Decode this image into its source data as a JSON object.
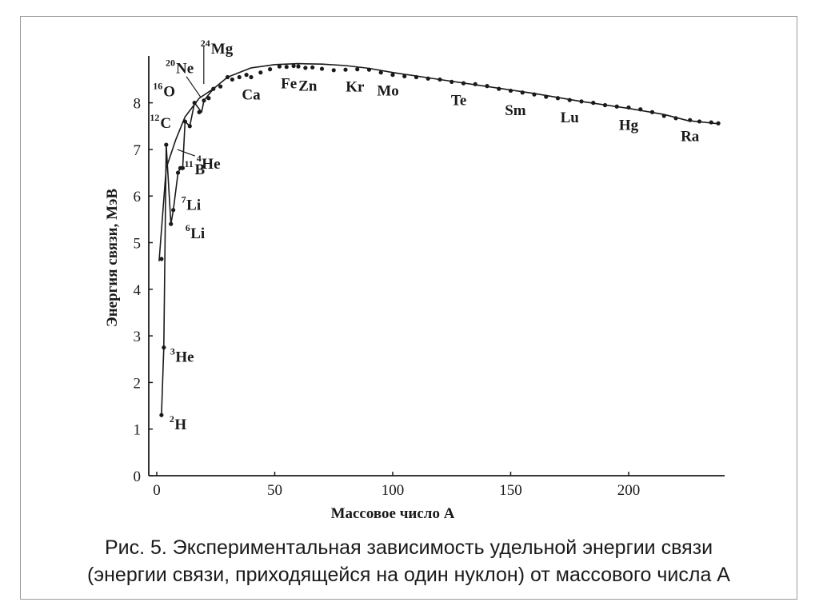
{
  "caption": {
    "line1": "Рис. 5. Экспериментальная зависимость удельной энергии связи",
    "line2": "(энергии связи, приходящейся на один нуклон) от массового числа А"
  },
  "chart_data": {
    "type": "line",
    "title": "",
    "xlabel": "Массовое число A",
    "ylabel": "Энергия связи, МэВ",
    "xlim": [
      -3,
      240
    ],
    "ylim": [
      0,
      9
    ],
    "x_ticks": [
      0,
      50,
      100,
      150,
      200
    ],
    "y_ticks": [
      0,
      1,
      2,
      3,
      4,
      5,
      6,
      7,
      8
    ],
    "grid": false,
    "legend": "none",
    "colors": {
      "line": "#1a1a1a",
      "axis": "#1a1a1a",
      "frame": "#9a9a9a"
    },
    "light_nuclei": [
      {
        "mass": "2",
        "symbol": "H",
        "A": 2,
        "E": 1.3
      },
      {
        "mass": "3",
        "symbol": "He",
        "A": 3,
        "E": 2.75
      },
      {
        "mass": "4",
        "symbol": "He",
        "A": 4,
        "E": 7.1
      },
      {
        "mass": "6",
        "symbol": "Li",
        "A": 6,
        "E": 5.4
      },
      {
        "mass": "7",
        "symbol": "Li",
        "A": 7,
        "E": 5.7
      },
      {
        "mass": "11",
        "symbol": "B",
        "A": 11,
        "E": 6.6
      },
      {
        "mass": "12",
        "symbol": "C",
        "A": 12,
        "E": 7.6
      },
      {
        "mass": "16",
        "symbol": "O",
        "A": 16,
        "E": 8.0
      },
      {
        "mass": "20",
        "symbol": "Ne",
        "A": 20,
        "E": 8.05
      },
      {
        "mass": "24",
        "symbol": "Mg",
        "A": 24,
        "E": 8.3
      }
    ],
    "element_labels": [
      {
        "text": "Ca",
        "A": 40,
        "E": 8.55
      },
      {
        "text": "Fe",
        "A": 56,
        "E": 8.79
      },
      {
        "text": "Zn",
        "A": 64,
        "E": 8.74
      },
      {
        "text": "Kr",
        "A": 84,
        "E": 8.72
      },
      {
        "text": "Mo",
        "A": 98,
        "E": 8.64
      },
      {
        "text": "Te",
        "A": 128,
        "E": 8.43
      },
      {
        "text": "Sm",
        "A": 152,
        "E": 8.22
      },
      {
        "text": "Lu",
        "A": 175,
        "E": 8.06
      },
      {
        "text": "Hg",
        "A": 200,
        "E": 7.9
      },
      {
        "text": "Ra",
        "A": 226,
        "E": 7.66
      }
    ],
    "light_path": [
      {
        "A": 2,
        "E": 1.3
      },
      {
        "A": 3,
        "E": 2.75
      },
      {
        "A": 4,
        "E": 7.1
      },
      {
        "A": 6,
        "E": 5.4
      },
      {
        "A": 7,
        "E": 5.7
      },
      {
        "A": 9,
        "E": 6.5
      },
      {
        "A": 10,
        "E": 6.6
      },
      {
        "A": 11,
        "E": 6.6
      },
      {
        "A": 12,
        "E": 7.6
      },
      {
        "A": 14,
        "E": 7.5
      },
      {
        "A": 16,
        "E": 8.0
      },
      {
        "A": 19,
        "E": 7.8
      },
      {
        "A": 20,
        "E": 8.05
      },
      {
        "A": 24,
        "E": 8.3
      }
    ],
    "mean_curve": [
      {
        "A": 1,
        "E": 4.6
      },
      {
        "A": 4,
        "E": 6.6
      },
      {
        "A": 8,
        "E": 7.2
      },
      {
        "A": 12,
        "E": 7.7
      },
      {
        "A": 18,
        "E": 8.1
      },
      {
        "A": 24,
        "E": 8.3
      },
      {
        "A": 30,
        "E": 8.55
      },
      {
        "A": 40,
        "E": 8.75
      },
      {
        "A": 50,
        "E": 8.82
      },
      {
        "A": 60,
        "E": 8.84
      },
      {
        "A": 70,
        "E": 8.83
      },
      {
        "A": 80,
        "E": 8.8
      },
      {
        "A": 90,
        "E": 8.74
      },
      {
        "A": 100,
        "E": 8.65
      },
      {
        "A": 120,
        "E": 8.5
      },
      {
        "A": 140,
        "E": 8.35
      },
      {
        "A": 160,
        "E": 8.2
      },
      {
        "A": 180,
        "E": 8.03
      },
      {
        "A": 200,
        "E": 7.88
      },
      {
        "A": 215,
        "E": 7.75
      },
      {
        "A": 225,
        "E": 7.62
      },
      {
        "A": 238,
        "E": 7.55
      }
    ],
    "data_points": [
      {
        "A": 2,
        "E": 1.3
      },
      {
        "A": 3,
        "E": 2.75
      },
      {
        "A": 2,
        "E": 4.65
      },
      {
        "A": 4,
        "E": 7.1
      },
      {
        "A": 6,
        "E": 5.4
      },
      {
        "A": 7,
        "E": 5.7
      },
      {
        "A": 9,
        "E": 6.5
      },
      {
        "A": 10,
        "E": 6.6
      },
      {
        "A": 11,
        "E": 6.6
      },
      {
        "A": 12,
        "E": 7.6
      },
      {
        "A": 14,
        "E": 7.5
      },
      {
        "A": 16,
        "E": 8.0
      },
      {
        "A": 18,
        "E": 7.8
      },
      {
        "A": 20,
        "E": 8.05
      },
      {
        "A": 22,
        "E": 8.1
      },
      {
        "A": 24,
        "E": 8.3
      },
      {
        "A": 27,
        "E": 8.35
      },
      {
        "A": 30,
        "E": 8.55
      },
      {
        "A": 32,
        "E": 8.5
      },
      {
        "A": 35,
        "E": 8.55
      },
      {
        "A": 38,
        "E": 8.6
      },
      {
        "A": 40,
        "E": 8.55
      },
      {
        "A": 44,
        "E": 8.65
      },
      {
        "A": 48,
        "E": 8.72
      },
      {
        "A": 52,
        "E": 8.78
      },
      {
        "A": 55,
        "E": 8.77
      },
      {
        "A": 58,
        "E": 8.79
      },
      {
        "A": 60,
        "E": 8.78
      },
      {
        "A": 63,
        "E": 8.75
      },
      {
        "A": 66,
        "E": 8.76
      },
      {
        "A": 70,
        "E": 8.73
      },
      {
        "A": 75,
        "E": 8.7
      },
      {
        "A": 80,
        "E": 8.71
      },
      {
        "A": 85,
        "E": 8.72
      },
      {
        "A": 90,
        "E": 8.71
      },
      {
        "A": 95,
        "E": 8.65
      },
      {
        "A": 100,
        "E": 8.6
      },
      {
        "A": 105,
        "E": 8.57
      },
      {
        "A": 110,
        "E": 8.55
      },
      {
        "A": 115,
        "E": 8.52
      },
      {
        "A": 120,
        "E": 8.5
      },
      {
        "A": 125,
        "E": 8.45
      },
      {
        "A": 130,
        "E": 8.42
      },
      {
        "A": 135,
        "E": 8.4
      },
      {
        "A": 140,
        "E": 8.36
      },
      {
        "A": 145,
        "E": 8.3
      },
      {
        "A": 150,
        "E": 8.26
      },
      {
        "A": 155,
        "E": 8.22
      },
      {
        "A": 160,
        "E": 8.18
      },
      {
        "A": 165,
        "E": 8.13
      },
      {
        "A": 170,
        "E": 8.1
      },
      {
        "A": 175,
        "E": 8.06
      },
      {
        "A": 180,
        "E": 8.03
      },
      {
        "A": 185,
        "E": 8.0
      },
      {
        "A": 190,
        "E": 7.95
      },
      {
        "A": 195,
        "E": 7.92
      },
      {
        "A": 200,
        "E": 7.9
      },
      {
        "A": 205,
        "E": 7.86
      },
      {
        "A": 210,
        "E": 7.8
      },
      {
        "A": 215,
        "E": 7.72
      },
      {
        "A": 220,
        "E": 7.67
      },
      {
        "A": 226,
        "E": 7.63
      },
      {
        "A": 230,
        "E": 7.6
      },
      {
        "A": 235,
        "E": 7.58
      },
      {
        "A": 238,
        "E": 7.56
      }
    ]
  }
}
